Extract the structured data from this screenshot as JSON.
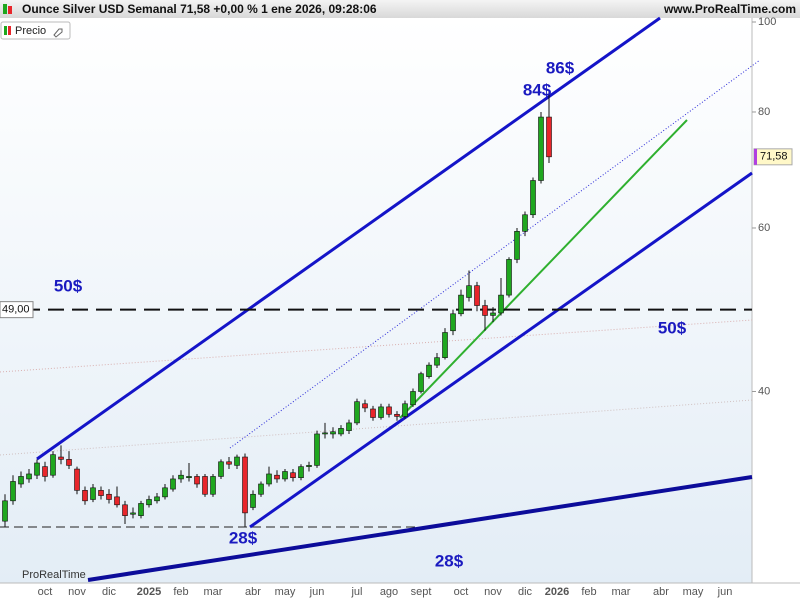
{
  "chart_data": {
    "type": "candlestick",
    "title": "Ounce Silver USD Semanal 71,58 +0,00 % 1 ene 2026, 09:28:06",
    "source": "www.ProRealTime.com",
    "legend": "Precio",
    "watermark": "ProRealTime",
    "log_scale": true,
    "ylim": [
      25,
      100
    ],
    "yticks": [
      40,
      60,
      80,
      100
    ],
    "up_color": "#1fa71f",
    "down_color": "#e8262b",
    "reference_line": {
      "value": 49,
      "label": "49,00"
    },
    "last_price": {
      "value": 71.58,
      "label": "71,58"
    },
    "annotations": [
      "86$",
      "84$",
      "50$",
      "50$",
      "28$",
      "28$"
    ],
    "categories": [
      null,
      null,
      null,
      null,
      null,
      "oct",
      null,
      null,
      null,
      "nov",
      null,
      null,
      null,
      "dic",
      null,
      null,
      null,
      null,
      "2025",
      null,
      null,
      null,
      "feb",
      null,
      null,
      null,
      "mar",
      null,
      null,
      null,
      null,
      "abr",
      null,
      null,
      null,
      "may",
      null,
      null,
      null,
      "jun",
      null,
      null,
      null,
      null,
      "jul",
      null,
      null,
      null,
      "ago",
      null,
      null,
      null,
      "sept",
      null,
      null,
      null,
      null,
      "oct",
      null,
      null,
      null,
      "nov",
      null,
      null,
      null,
      "dic",
      null,
      null,
      null,
      "2026",
      null,
      null,
      null,
      "feb",
      null,
      null,
      null,
      "mar",
      null,
      null,
      null,
      null,
      "abr",
      null,
      null,
      null,
      "may",
      null,
      null,
      null,
      "jun",
      null,
      null,
      null
    ],
    "open": [
      29,
      30.5,
      31.8,
      32.2,
      32.5,
      33.2,
      32.5,
      34,
      33.8,
      33,
      31.3,
      30.6,
      31.3,
      31,
      30.8,
      30.2,
      29.5,
      29.4,
      30.2,
      30.5,
      30.8,
      31.4,
      32.2,
      32.3,
      32.4,
      32.4,
      31,
      32.4,
      33.6,
      33.3,
      34,
      30,
      31,
      31.8,
      32.5,
      32.2,
      32.7,
      32.3,
      33.2,
      33.3,
      36,
      36,
      36,
      36.3,
      37,
      38.8,
      38.3,
      37.5,
      38.5,
      37.8,
      37.6,
      38.7,
      40,
      41.5,
      42.7,
      43.5,
      46.5,
      48.5,
      50.5,
      52,
      49.5,
      48.3,
      48.6,
      50.8,
      55.5,
      59.5,
      62,
      67.5,
      79,
      null,
      null,
      null,
      null,
      null,
      null,
      null,
      null,
      null,
      null,
      null,
      null,
      null,
      null,
      null,
      null,
      null,
      null,
      null,
      null,
      null,
      null,
      null,
      null,
      null
    ],
    "high": [
      31,
      32.5,
      32.8,
      33,
      33.8,
      33.6,
      34.5,
      35,
      34.5,
      33.2,
      31.6,
      31.8,
      31.6,
      31.4,
      31.6,
      30.5,
      30,
      30.5,
      30.9,
      31.1,
      31.8,
      32.5,
      32.9,
      33.5,
      32.6,
      32.6,
      32.6,
      33.8,
      34,
      34.2,
      34.3,
      31.3,
      32,
      33.2,
      32.9,
      33,
      33,
      33.4,
      33.6,
      36.3,
      37,
      36.6,
      36.8,
      37.3,
      39.3,
      39.2,
      38.6,
      38.8,
      38.8,
      38.1,
      39.1,
      40.3,
      42,
      43,
      44,
      46.8,
      49,
      51.5,
      54,
      52.5,
      50.2,
      49.3,
      53,
      55.8,
      60,
      62.5,
      68,
      80,
      84.3,
      null,
      null,
      null,
      null,
      null,
      null,
      null,
      null,
      null,
      null,
      null,
      null,
      null,
      null,
      null,
      null,
      null,
      null,
      null,
      null,
      null,
      null,
      null,
      null,
      null
    ],
    "low": [
      28.6,
      30.2,
      31.5,
      31.9,
      32.2,
      32,
      32.3,
      33.4,
      33,
      31,
      30.2,
      30.4,
      30.6,
      30.3,
      30,
      28.8,
      29.2,
      29.2,
      30,
      30.3,
      30.6,
      31.2,
      31.9,
      32,
      31.5,
      30.8,
      30.8,
      32.2,
      33,
      33,
      28.6,
      29.8,
      30.8,
      31.6,
      31.9,
      32,
      32,
      32.1,
      32.8,
      33.1,
      35.6,
      35.6,
      35.8,
      36,
      36.8,
      38,
      37.2,
      37.3,
      37.5,
      37.2,
      37.4,
      38.5,
      39.8,
      41.3,
      42.4,
      43.3,
      46,
      48.2,
      50,
      48.8,
      46.5,
      47.5,
      48.3,
      50.5,
      55,
      58.8,
      61.5,
      67,
      70.5,
      null,
      null,
      null,
      null,
      null,
      null,
      null,
      null,
      null,
      null,
      null,
      null,
      null,
      null,
      null,
      null,
      null,
      null,
      null,
      null,
      null,
      null,
      null,
      null,
      null
    ],
    "close": [
      30.5,
      32,
      32.4,
      32.6,
      33.5,
      32.4,
      34.2,
      33.8,
      33.3,
      31.3,
      30.5,
      31.5,
      30.9,
      30.6,
      30.2,
      29.4,
      29.6,
      30.3,
      30.6,
      30.8,
      31.5,
      32.2,
      32.5,
      32.4,
      31.8,
      31,
      32.4,
      33.6,
      33.4,
      34,
      29.6,
      31,
      31.8,
      32.6,
      32.2,
      32.8,
      32.3,
      33.2,
      33.3,
      36,
      36.1,
      36.2,
      36.5,
      37,
      39,
      38.4,
      37.5,
      38.5,
      37.8,
      37.6,
      38.8,
      40,
      41.8,
      42.7,
      43.5,
      46.3,
      48.5,
      50.8,
      52,
      49.5,
      48.3,
      48.6,
      50.8,
      55.5,
      59.5,
      62,
      67.5,
      79,
      71.58,
      null,
      null,
      null,
      null,
      null,
      null,
      null,
      null,
      null,
      null,
      null,
      null,
      null,
      null,
      null,
      null,
      null,
      null,
      null,
      null,
      null,
      null,
      null,
      null,
      null
    ]
  }
}
